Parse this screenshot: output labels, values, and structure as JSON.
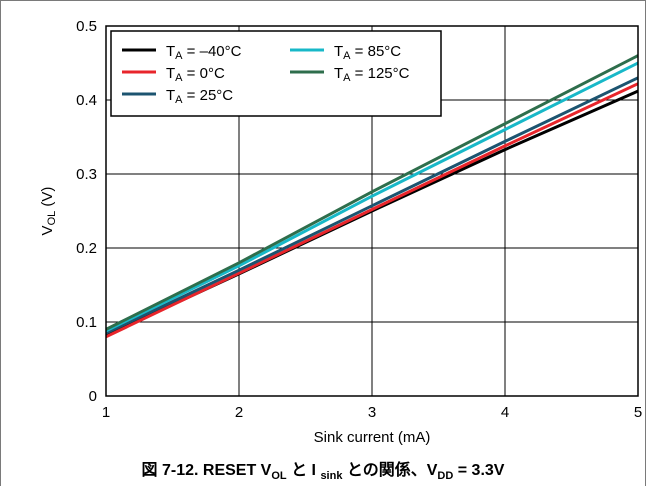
{
  "chart_data": {
    "type": "line",
    "xlabel": "Sink current (mA)",
    "ylabel": "V_OL (V)",
    "ylabel_main": "V",
    "ylabel_sub": "OL",
    "ylabel_unit": " (V)",
    "xlim": [
      1,
      5
    ],
    "ylim": [
      0,
      0.5
    ],
    "xticks": [
      1,
      2,
      3,
      4,
      5
    ],
    "xtick_labels": [
      "1",
      "2",
      "3",
      "4",
      "5"
    ],
    "yticks": [
      0,
      0.1,
      0.2,
      0.3,
      0.4,
      0.5
    ],
    "ytick_labels": [
      "0",
      "0.1",
      "0.2",
      "0.3",
      "0.4",
      "0.5"
    ],
    "grid": true,
    "legend_position": "top-left",
    "x": [
      1,
      2,
      3,
      4,
      5
    ],
    "series": [
      {
        "name": "T_A = –40°C",
        "name_main": "T",
        "name_sub": "A",
        "name_rest": " = –40°C",
        "color": "#000000",
        "values": [
          0.082,
          0.165,
          0.25,
          0.333,
          0.412
        ]
      },
      {
        "name": "T_A = 0°C",
        "name_main": "T",
        "name_sub": "A",
        "name_rest": " = 0°C",
        "color": "#e8252b",
        "values": [
          0.08,
          0.166,
          0.252,
          0.338,
          0.422
        ]
      },
      {
        "name": "T_A = 25°C",
        "name_main": "T",
        "name_sub": "A",
        "name_rest": " = 25°C",
        "color": "#1c5470",
        "values": [
          0.085,
          0.17,
          0.257,
          0.344,
          0.43
        ]
      },
      {
        "name": "T_A = 85°C",
        "name_main": "T",
        "name_sub": "A",
        "name_rest": " = 85°C",
        "color": "#18b8c8",
        "values": [
          0.088,
          0.176,
          0.27,
          0.36,
          0.45
        ]
      },
      {
        "name": "T_A = 125°C",
        "name_main": "T",
        "name_sub": "A",
        "name_rest": " = 125°C",
        "color": "#2e6e4c",
        "values": [
          0.09,
          0.18,
          0.276,
          0.368,
          0.46
        ]
      }
    ]
  },
  "caption": {
    "prefix": "図 7-12. RESET V",
    "vol_sub": "OL",
    "mid1": " と I ",
    "isink_sub": "sink",
    "mid2": " との関係、V",
    "vdd_sub": "DD",
    "suffix": " = 3.3V"
  }
}
